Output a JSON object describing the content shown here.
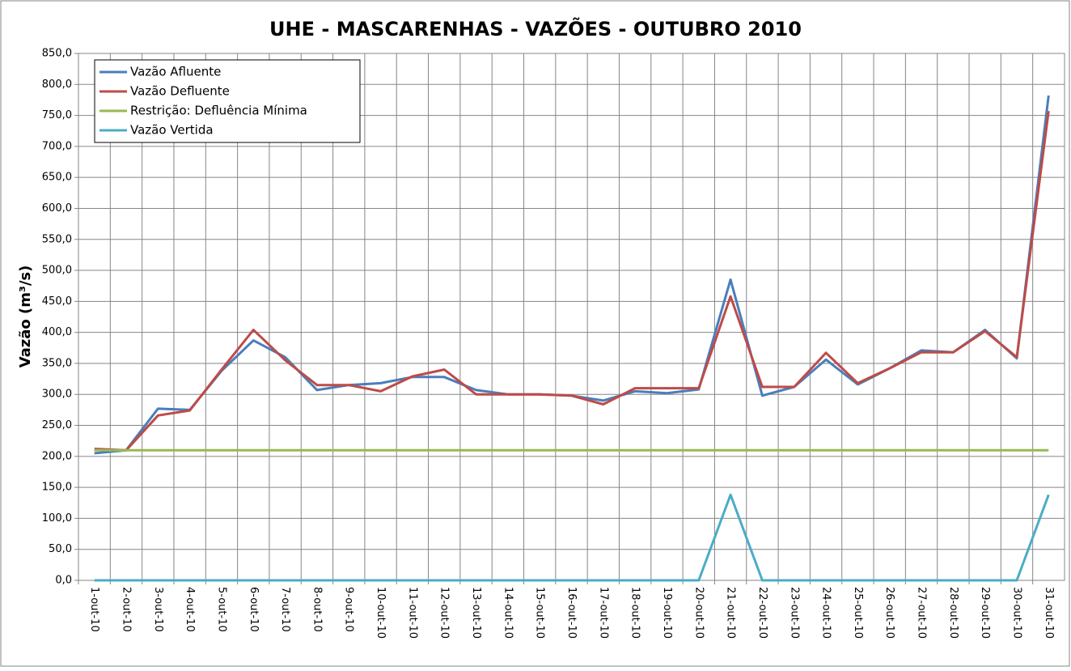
{
  "chart_data": {
    "type": "line",
    "title": "UHE - MASCARENHAS - VAZÕES -  OUTUBRO 2010",
    "y_label": "Vazão (m³/s)",
    "categories": [
      "1-out-10",
      "2-out-10",
      "3-out-10",
      "4-out-10",
      "5-out-10",
      "6-out-10",
      "7-out-10",
      "8-out-10",
      "9-out-10",
      "10-out-10",
      "11-out-10",
      "12-out-10",
      "13-out-10",
      "14-out-10",
      "15-out-10",
      "16-out-10",
      "17-out-10",
      "18-out-10",
      "19-out-10",
      "20-out-10",
      "21-out-10",
      "22-out-10",
      "23-out-10",
      "24-out-10",
      "25-out-10",
      "26-out-10",
      "27-out-10",
      "28-out-10",
      "29-out-10",
      "30-out-10",
      "31-out-10"
    ],
    "series": [
      {
        "name": "Vazão Afluente",
        "color": "#4a7ebb",
        "values": [
          205,
          210,
          277,
          275,
          338,
          387,
          360,
          307,
          315,
          318,
          328,
          328,
          307,
          300,
          300,
          298,
          290,
          305,
          302,
          308,
          485,
          298,
          312,
          356,
          316,
          342,
          371,
          368,
          404,
          358,
          782
        ]
      },
      {
        "name": "Vazão Defluente",
        "color": "#be4b48",
        "values": [
          212,
          210,
          266,
          274,
          340,
          404,
          355,
          315,
          315,
          305,
          329,
          340,
          300,
          300,
          300,
          298,
          284,
          310,
          310,
          310,
          458,
          312,
          312,
          367,
          318,
          342,
          368,
          368,
          402,
          360,
          757
        ]
      },
      {
        "name": "Restrição: Defluência Mínima",
        "color": "#98b954",
        "values": [
          210,
          210,
          210,
          210,
          210,
          210,
          210,
          210,
          210,
          210,
          210,
          210,
          210,
          210,
          210,
          210,
          210,
          210,
          210,
          210,
          210,
          210,
          210,
          210,
          210,
          210,
          210,
          210,
          210,
          210,
          210
        ]
      },
      {
        "name": "Vazão Vertida",
        "color": "#4bacc6",
        "values": [
          0,
          0,
          0,
          0,
          0,
          0,
          0,
          0,
          0,
          0,
          0,
          0,
          0,
          0,
          0,
          0,
          0,
          0,
          0,
          0,
          138,
          0,
          0,
          0,
          0,
          0,
          0,
          0,
          0,
          0,
          138
        ]
      }
    ],
    "ylim": [
      0,
      850
    ],
    "yticks": [
      {
        "value": 0,
        "label": "0,0"
      },
      {
        "value": 50,
        "label": "50,0"
      },
      {
        "value": 100,
        "label": "100,0"
      },
      {
        "value": 150,
        "label": "150,0"
      },
      {
        "value": 200,
        "label": "200,0"
      },
      {
        "value": 250,
        "label": "250,0"
      },
      {
        "value": 300,
        "label": "300,0"
      },
      {
        "value": 350,
        "label": "350,0"
      },
      {
        "value": 400,
        "label": "400,0"
      },
      {
        "value": 450,
        "label": "450,0"
      },
      {
        "value": 500,
        "label": "500,0"
      },
      {
        "value": 550,
        "label": "550,0"
      },
      {
        "value": 600,
        "label": "600,0"
      },
      {
        "value": 650,
        "label": "650,0"
      },
      {
        "value": 700,
        "label": "700,0"
      },
      {
        "value": 750,
        "label": "750,0"
      },
      {
        "value": 800,
        "label": "800,0"
      },
      {
        "value": 850,
        "label": "850,0"
      }
    ],
    "grid": true,
    "legend": "top-left"
  }
}
